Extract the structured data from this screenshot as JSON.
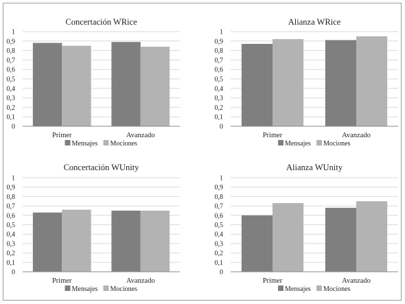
{
  "colors": {
    "mensajes": "#7f7f7f",
    "mociones": "#b3b3b3",
    "grid": "#d9d9d9",
    "axis": "#888888"
  },
  "chart_data": [
    {
      "type": "bar",
      "title": "Concertación WRice",
      "categories": [
        "Primer",
        "Avanzado"
      ],
      "series": [
        {
          "name": "Mensajes",
          "values": [
            0.88,
            0.89
          ]
        },
        {
          "name": "Mociones",
          "values": [
            0.85,
            0.84
          ]
        }
      ],
      "yticks": [
        "0",
        "0,1",
        "0,2",
        "0,3",
        "0,4",
        "0,5",
        "0,6",
        "0,7",
        "0,8",
        "0,9",
        "1"
      ],
      "ylim": [
        0,
        1
      ],
      "grid": true,
      "legend": "bottom"
    },
    {
      "type": "bar",
      "title": "Alianza WRice",
      "categories": [
        "Primer",
        "Avanzado"
      ],
      "series": [
        {
          "name": "Mensajes",
          "values": [
            0.87,
            0.91
          ]
        },
        {
          "name": "Mociones",
          "values": [
            0.92,
            0.95
          ]
        }
      ],
      "yticks": [
        "0",
        "0,1",
        "0,2",
        "0,3",
        "0,4",
        "0,5",
        "0,6",
        "0,7",
        "0,8",
        "0,9",
        "1"
      ],
      "ylim": [
        0,
        1
      ],
      "grid": true,
      "legend": "bottom"
    },
    {
      "type": "bar",
      "title": "Concertación WUnity",
      "categories": [
        "Primer",
        "Avanzado"
      ],
      "series": [
        {
          "name": "Mensajes",
          "values": [
            0.63,
            0.65
          ]
        },
        {
          "name": "Mociones",
          "values": [
            0.66,
            0.65
          ]
        }
      ],
      "yticks": [
        "0",
        "0,1",
        "0,2",
        "0,3",
        "0,4",
        "0,5",
        "0,6",
        "0,7",
        "0,8",
        "0,9",
        "1"
      ],
      "ylim": [
        0,
        1
      ],
      "grid": true,
      "legend": "bottom"
    },
    {
      "type": "bar",
      "title": "Alianza WUnity",
      "categories": [
        "Primer",
        "Avanzado"
      ],
      "series": [
        {
          "name": "Mensajes",
          "values": [
            0.6,
            0.68
          ]
        },
        {
          "name": "Mociones",
          "values": [
            0.73,
            0.75
          ]
        }
      ],
      "yticks": [
        "0",
        "0,1",
        "0,2",
        "0,3",
        "0,4",
        "0,5",
        "0,6",
        "0,7",
        "0,8",
        "0,9",
        "1"
      ],
      "ylim": [
        0,
        1
      ],
      "grid": true,
      "legend": "bottom"
    }
  ]
}
